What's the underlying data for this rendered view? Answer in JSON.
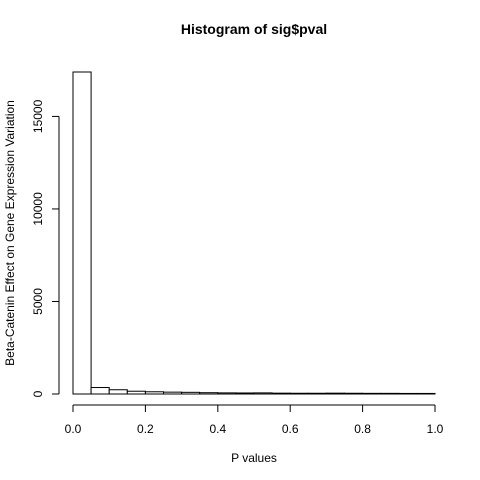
{
  "chart_data": {
    "type": "bar",
    "title": "Histogram of sig$pval",
    "xlabel": "P values",
    "ylabel": "Beta-Catenin Effect on Gene Expression Variation",
    "xlim": [
      0,
      1
    ],
    "ylim": [
      0,
      17400
    ],
    "bin_width": 0.05,
    "bins": [
      {
        "x0": 0.0,
        "x1": 0.05,
        "count": 17400
      },
      {
        "x0": 0.05,
        "x1": 0.1,
        "count": 350
      },
      {
        "x0": 0.1,
        "x1": 0.15,
        "count": 230
      },
      {
        "x0": 0.15,
        "x1": 0.2,
        "count": 150
      },
      {
        "x0": 0.2,
        "x1": 0.25,
        "count": 120
      },
      {
        "x0": 0.25,
        "x1": 0.3,
        "count": 100
      },
      {
        "x0": 0.3,
        "x1": 0.35,
        "count": 90
      },
      {
        "x0": 0.35,
        "x1": 0.4,
        "count": 70
      },
      {
        "x0": 0.4,
        "x1": 0.45,
        "count": 60
      },
      {
        "x0": 0.45,
        "x1": 0.5,
        "count": 55
      },
      {
        "x0": 0.5,
        "x1": 0.55,
        "count": 60
      },
      {
        "x0": 0.55,
        "x1": 0.6,
        "count": 45
      },
      {
        "x0": 0.6,
        "x1": 0.65,
        "count": 40
      },
      {
        "x0": 0.65,
        "x1": 0.7,
        "count": 40
      },
      {
        "x0": 0.7,
        "x1": 0.75,
        "count": 45
      },
      {
        "x0": 0.75,
        "x1": 0.8,
        "count": 40
      },
      {
        "x0": 0.8,
        "x1": 0.85,
        "count": 35
      },
      {
        "x0": 0.85,
        "x1": 0.9,
        "count": 35
      },
      {
        "x0": 0.9,
        "x1": 0.95,
        "count": 30
      },
      {
        "x0": 0.95,
        "x1": 1.0,
        "count": 30
      }
    ],
    "x_ticks": [
      0.0,
      0.2,
      0.4,
      0.6,
      0.8,
      1.0
    ],
    "x_tick_labels": [
      "0.0",
      "0.2",
      "0.4",
      "0.6",
      "0.8",
      "1.0"
    ],
    "y_ticks": [
      0,
      5000,
      10000,
      15000
    ],
    "y_tick_labels": [
      "0",
      "5000",
      "10000",
      "15000"
    ],
    "grid": false,
    "bar_fill": "#ffffff",
    "bar_stroke": "#000000"
  }
}
